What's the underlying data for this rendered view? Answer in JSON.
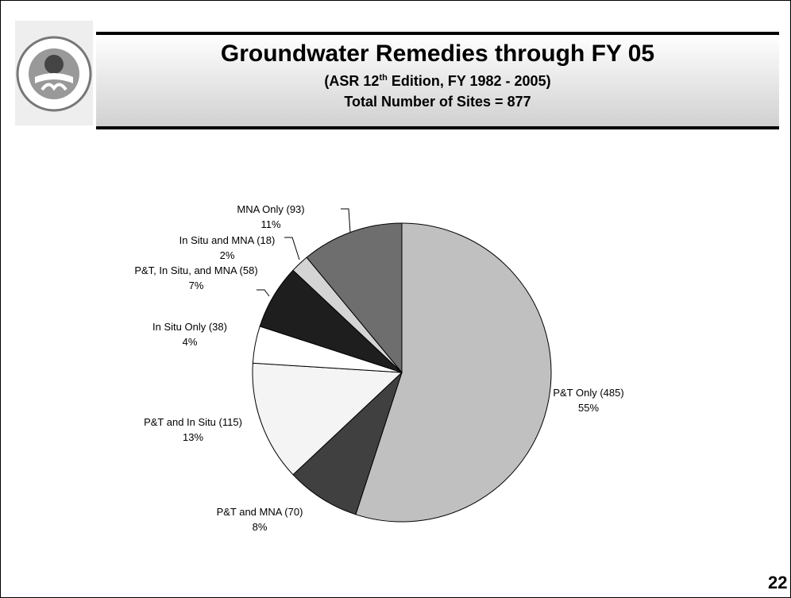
{
  "header": {
    "title": "Groundwater Remedies through FY 05",
    "subtitle_parts": [
      "(ASR 12",
      "th",
      " Edition, FY 1982 - 2005)"
    ],
    "total_line": "Total Number of Sites = 877"
  },
  "page_number": "22",
  "chart_data": {
    "type": "pie",
    "categories": [
      "P&T Only (485)",
      "P&T and MNA (70)",
      "P&T and In Situ (115)",
      "In Situ Only (38)",
      "P&T, In Situ, and MNA (58)",
      "In Situ and MNA (18)",
      "MNA Only (93)"
    ],
    "values": [
      55,
      8,
      13,
      4,
      7,
      2,
      11
    ],
    "value_labels": [
      "55%",
      "8%",
      "13%",
      "4%",
      "7%",
      "2%",
      "11%"
    ],
    "colors": [
      "#c0c0c0",
      "#404040",
      "#f4f4f4",
      "#ffffff",
      "#1e1e1e",
      "#d4d4d4",
      "#6e6e6e"
    ]
  }
}
